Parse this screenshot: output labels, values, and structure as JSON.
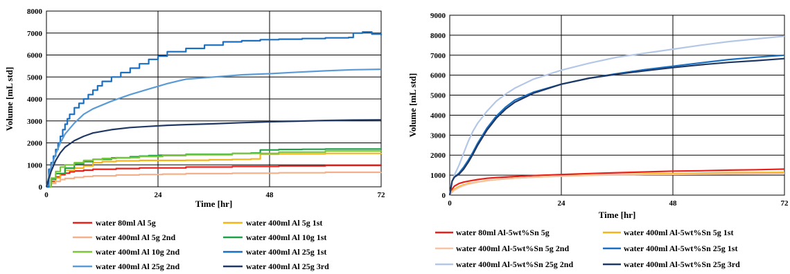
{
  "chart_data": [
    {
      "type": "line",
      "title": "",
      "xlabel": "Time [hr]",
      "ylabel": "Volume [mL std]",
      "xlim": [
        0,
        72
      ],
      "ylim": [
        0,
        8000
      ],
      "xticks": [
        "0",
        "24",
        "48",
        "72"
      ],
      "yticks": [
        "0",
        "1000",
        "2000",
        "3000",
        "4000",
        "5000",
        "6000",
        "7000",
        "8000"
      ],
      "grid": true,
      "legend_position": "bottom",
      "series": [
        {
          "name": "water 80ml Al 5g",
          "color": "#e8201c",
          "step": true,
          "x": [
            0,
            1,
            2,
            3,
            4,
            5,
            6,
            8,
            10,
            15,
            20,
            30,
            40,
            50,
            60,
            72
          ],
          "y": [
            0,
            250,
            450,
            550,
            620,
            680,
            720,
            760,
            800,
            830,
            860,
            900,
            930,
            950,
            970,
            990
          ]
        },
        {
          "name": "water 400ml Al 5g 1st",
          "color": "#f3b61a",
          "step": true,
          "x": [
            0,
            1,
            2,
            3,
            4,
            6,
            8,
            10,
            12,
            15,
            20,
            25,
            30,
            35,
            40,
            44,
            46,
            50,
            60,
            72
          ],
          "y": [
            0,
            200,
            400,
            600,
            750,
            850,
            950,
            1100,
            1150,
            1180,
            1200,
            1200,
            1210,
            1230,
            1250,
            1270,
            1480,
            1500,
            1520,
            1540
          ]
        },
        {
          "name": "water 400ml Al 5g 2nd",
          "color": "#f4b08a",
          "step": true,
          "x": [
            0,
            1,
            2,
            3,
            4,
            6,
            8,
            10,
            15,
            20,
            25,
            30,
            40,
            50,
            60,
            72
          ],
          "y": [
            0,
            150,
            250,
            330,
            380,
            430,
            470,
            500,
            540,
            560,
            580,
            600,
            620,
            640,
            660,
            670
          ]
        },
        {
          "name": "water 400ml Al 10g 1st",
          "color": "#1fa046",
          "step": true,
          "x": [
            0,
            1,
            2,
            4,
            6,
            8,
            10,
            14,
            18,
            20,
            22,
            24,
            30,
            40,
            44,
            46,
            50,
            55,
            60,
            65,
            70,
            72
          ],
          "y": [
            0,
            350,
            600,
            850,
            1050,
            1150,
            1250,
            1320,
            1370,
            1400,
            1420,
            1440,
            1480,
            1520,
            1540,
            1680,
            1700,
            1710,
            1720,
            1720,
            1720,
            1700
          ]
        },
        {
          "name": "water 400ml Al 10g 2nd",
          "color": "#7cc43c",
          "step": true,
          "x": [
            0,
            1,
            2,
            3,
            4,
            6,
            8,
            10,
            12,
            15,
            20,
            25,
            30,
            40,
            50,
            60,
            72
          ],
          "y": [
            0,
            400,
            700,
            900,
            1000,
            1100,
            1200,
            1250,
            1290,
            1330,
            1380,
            1420,
            1460,
            1520,
            1580,
            1630,
            1650
          ]
        },
        {
          "name": "water 400ml Al 25g 1st",
          "color": "#1a6fc0",
          "step": true,
          "x": [
            0,
            0.5,
            1,
            1.5,
            2,
            2.5,
            3,
            3.5,
            4,
            4.5,
            5,
            6,
            7,
            8,
            9,
            10,
            11,
            12,
            14,
            16,
            18,
            20,
            22,
            24,
            26,
            30,
            34,
            38,
            42,
            46,
            50,
            55,
            60,
            65,
            66,
            68,
            70,
            72
          ],
          "y": [
            0,
            800,
            1100,
            1400,
            1700,
            2000,
            2300,
            2600,
            2850,
            3100,
            3300,
            3600,
            3800,
            4000,
            4200,
            4400,
            4600,
            4800,
            5000,
            5200,
            5400,
            5600,
            5800,
            5950,
            6150,
            6300,
            6450,
            6600,
            6650,
            6700,
            6720,
            6750,
            6780,
            6800,
            7000,
            7050,
            6950,
            6900
          ]
        },
        {
          "name": "water 400ml Al 25g 2nd",
          "color": "#5b9bd5",
          "step": false,
          "x": [
            0,
            1,
            2,
            3,
            4,
            6,
            8,
            10,
            14,
            18,
            22,
            26,
            30,
            36,
            42,
            48,
            54,
            60,
            66,
            72
          ],
          "y": [
            0,
            900,
            1500,
            2000,
            2400,
            2900,
            3300,
            3550,
            3900,
            4200,
            4450,
            4700,
            4900,
            5000,
            5100,
            5150,
            5220,
            5280,
            5330,
            5350
          ]
        },
        {
          "name": "water 400ml Al 25g 3rd",
          "color": "#1f3864",
          "step": false,
          "x": [
            0,
            1,
            2,
            3,
            4,
            6,
            8,
            10,
            14,
            18,
            22,
            26,
            30,
            36,
            42,
            48,
            54,
            60,
            66,
            72
          ],
          "y": [
            0,
            700,
            1200,
            1550,
            1800,
            2100,
            2300,
            2450,
            2600,
            2700,
            2750,
            2800,
            2830,
            2870,
            2920,
            2960,
            2990,
            3020,
            3040,
            3050
          ]
        }
      ]
    },
    {
      "type": "line",
      "title": "",
      "xlabel": "Time [hr]",
      "ylabel": "Volume [mL std]",
      "xlim": [
        0,
        72
      ],
      "ylim": [
        0,
        9000
      ],
      "xticks": [
        "0",
        "24",
        "48",
        "72"
      ],
      "yticks": [
        "0",
        "1000",
        "2000",
        "3000",
        "4000",
        "5000",
        "6000",
        "7000",
        "8000",
        "9000"
      ],
      "grid": true,
      "legend_position": "bottom",
      "series": [
        {
          "name": "water 80ml Al-5wt%Sn 5g",
          "color": "#e8201c",
          "step": false,
          "x": [
            0,
            0.5,
            1,
            2,
            3,
            4,
            6,
            8,
            10,
            14,
            18,
            24,
            30,
            36,
            42,
            48,
            54,
            60,
            66,
            72
          ],
          "y": [
            0,
            300,
            450,
            580,
            650,
            700,
            780,
            840,
            880,
            930,
            980,
            1030,
            1080,
            1120,
            1160,
            1200,
            1220,
            1250,
            1270,
            1300
          ]
        },
        {
          "name": "water 400ml Al-5wt%Sn 5g 1st",
          "color": "#f3b61a",
          "step": false,
          "x": [
            0,
            0.5,
            1,
            2,
            3,
            4,
            6,
            8,
            10,
            14,
            18,
            24,
            30,
            36,
            42,
            48,
            54,
            60,
            66,
            72
          ],
          "y": [
            0,
            200,
            300,
            430,
            520,
            580,
            660,
            730,
            780,
            850,
            900,
            960,
            1000,
            1030,
            1060,
            1080,
            1100,
            1120,
            1130,
            1140
          ]
        },
        {
          "name": "water 400ml Al-5wt%Sn 5g 2nd",
          "color": "#f6c3a4",
          "step": false,
          "x": [
            0,
            0.5,
            1,
            2,
            3,
            4,
            6,
            8,
            10,
            14,
            18,
            24,
            30,
            36,
            42,
            48,
            54,
            60,
            66,
            72
          ],
          "y": [
            0,
            150,
            250,
            380,
            480,
            550,
            650,
            720,
            780,
            850,
            900,
            950,
            990,
            1010,
            1030,
            1040,
            1050,
            1060,
            1070,
            1080
          ]
        },
        {
          "name": "water 400ml Al-5wt%Sn 25g 1st",
          "color": "#1a6fc0",
          "step": false,
          "x": [
            0,
            0.5,
            1,
            2,
            3,
            4,
            5,
            6,
            8,
            10,
            12,
            14,
            18,
            24,
            30,
            36,
            42,
            48,
            54,
            60,
            66,
            72
          ],
          "y": [
            0,
            700,
            900,
            1100,
            1400,
            1750,
            2150,
            2600,
            3350,
            3950,
            4400,
            4750,
            5150,
            5550,
            5850,
            6080,
            6280,
            6450,
            6620,
            6780,
            6900,
            7000
          ]
        },
        {
          "name": "water 400ml Al-5wt%Sn 25g 2nd",
          "color": "#b4c7e7",
          "step": false,
          "x": [
            0,
            0.5,
            1,
            2,
            3,
            4,
            5,
            6,
            8,
            10,
            12,
            14,
            18,
            24,
            30,
            36,
            42,
            48,
            54,
            60,
            66,
            72
          ],
          "y": [
            0,
            700,
            1000,
            1500,
            2100,
            2700,
            3200,
            3600,
            4200,
            4700,
            5050,
            5350,
            5800,
            6250,
            6600,
            6900,
            7100,
            7300,
            7500,
            7680,
            7820,
            7950
          ]
        },
        {
          "name": "water 400ml Al-5wt%Sn 25g 3rd",
          "color": "#1f3864",
          "step": false,
          "x": [
            0,
            0.5,
            1,
            2,
            3,
            4,
            5,
            6,
            8,
            10,
            12,
            14,
            18,
            24,
            30,
            36,
            42,
            48,
            54,
            60,
            66,
            72
          ],
          "y": [
            0,
            700,
            900,
            1050,
            1300,
            1650,
            2050,
            2500,
            3250,
            3850,
            4300,
            4650,
            5100,
            5550,
            5850,
            6050,
            6220,
            6380,
            6520,
            6640,
            6730,
            6830
          ]
        }
      ]
    }
  ]
}
